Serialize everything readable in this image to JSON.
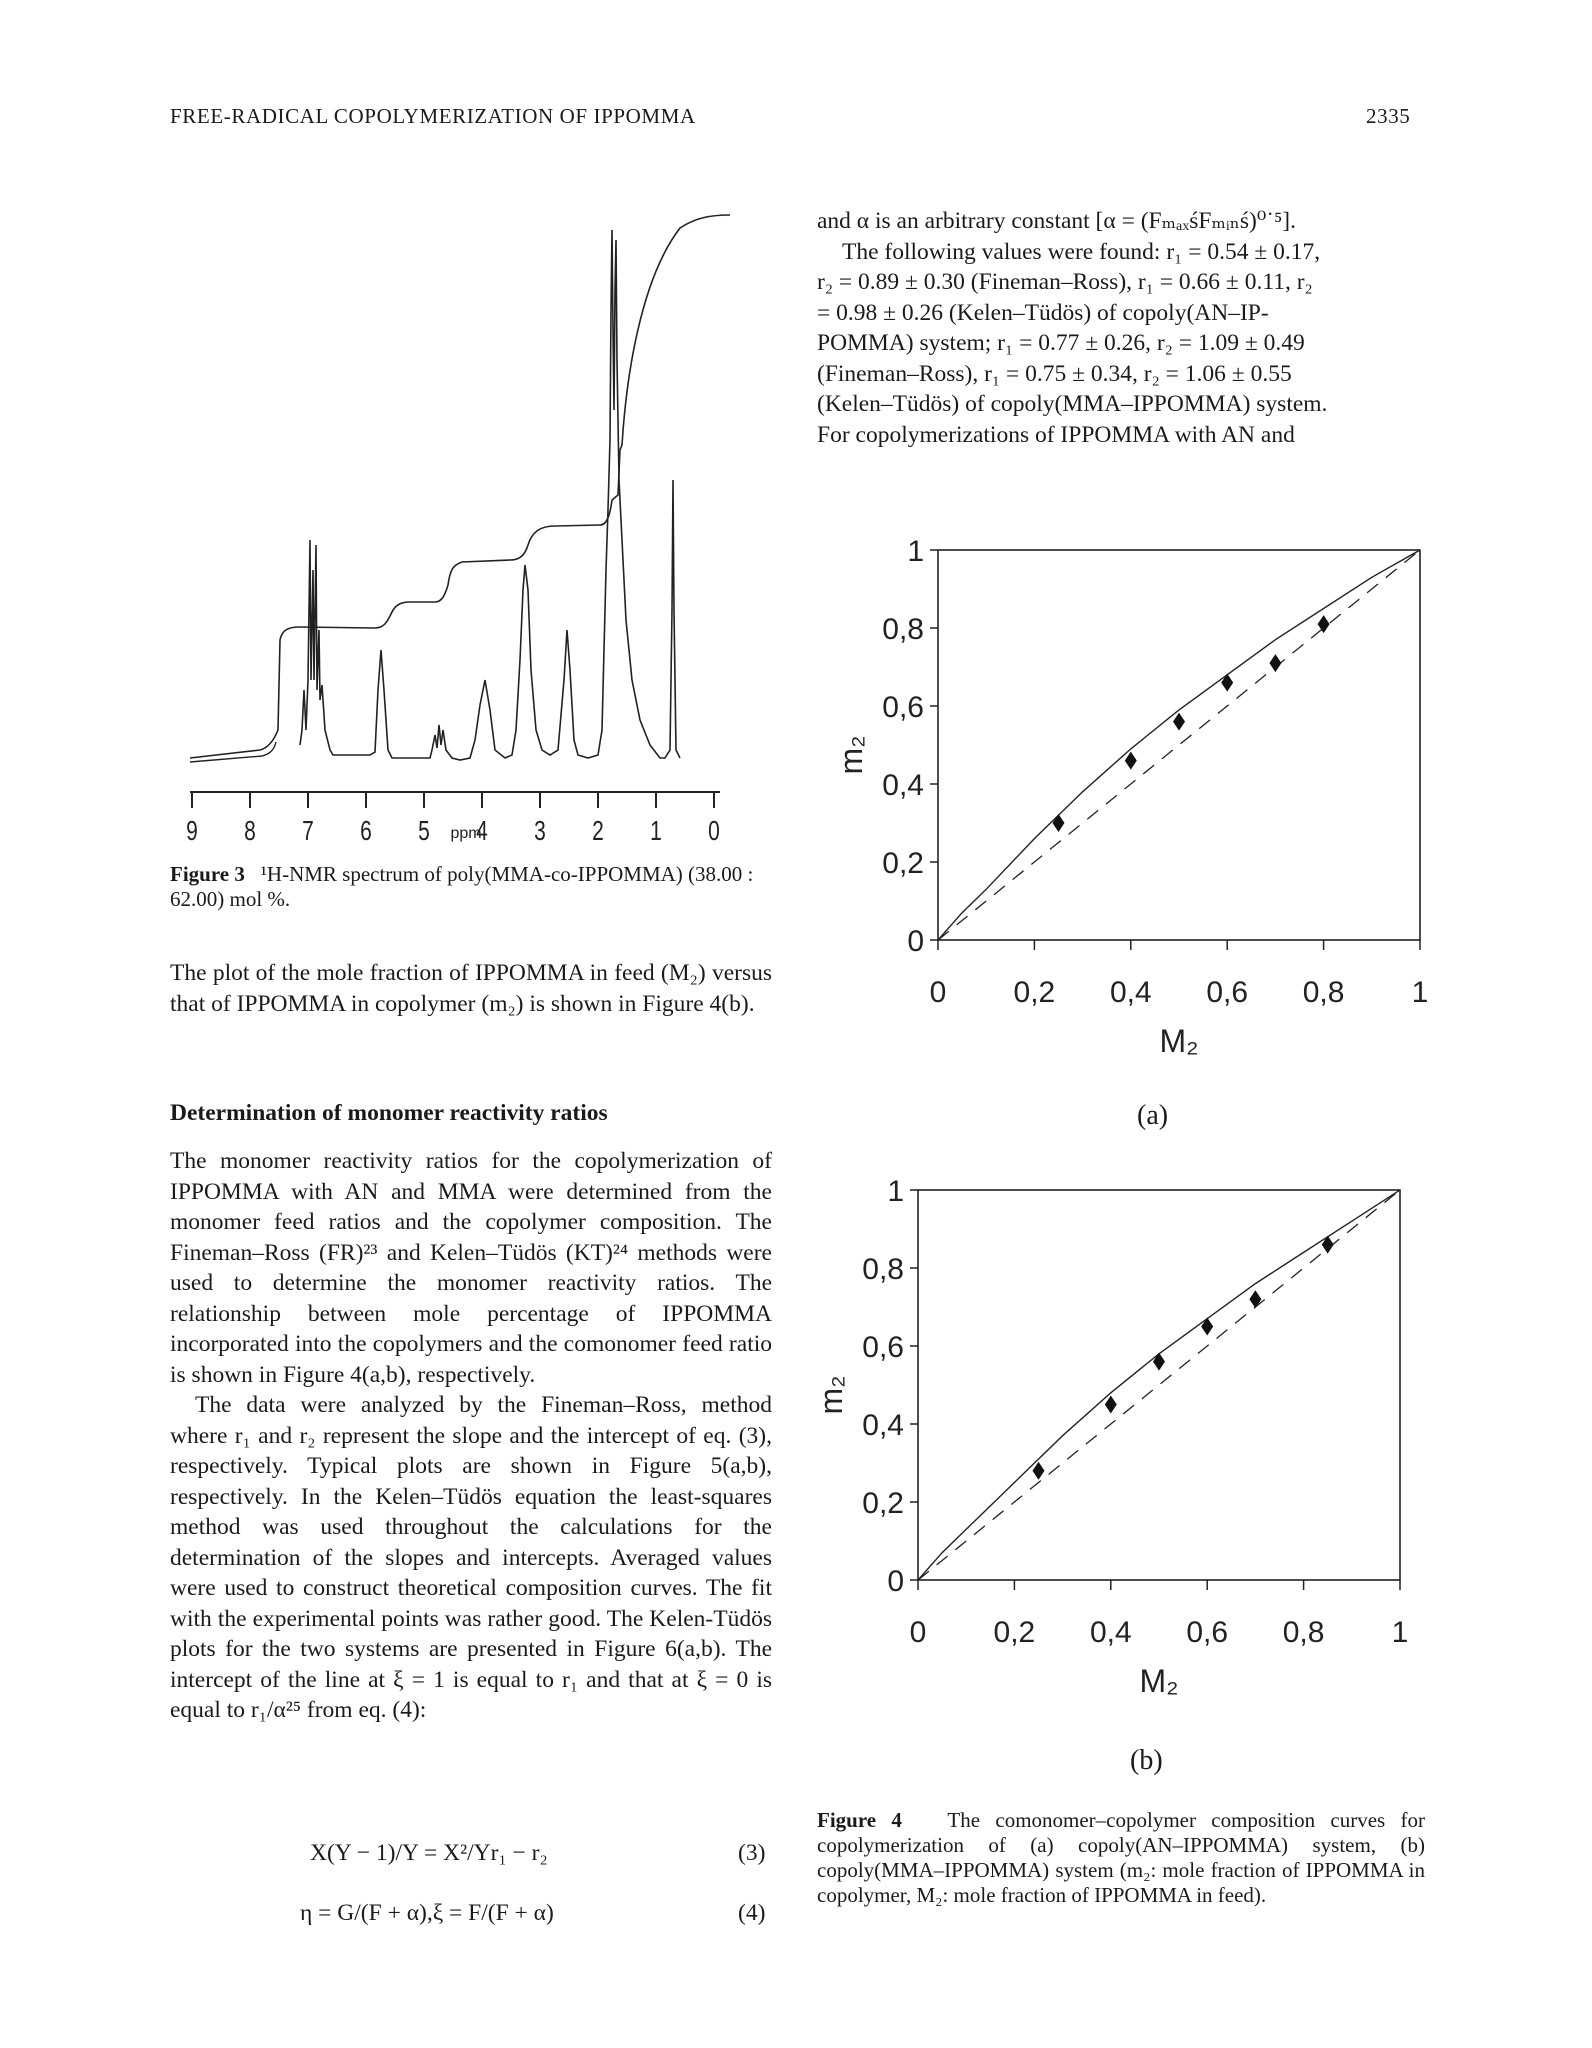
{
  "header": {
    "left": "FREE-RADICAL COPOLYMERIZATION OF IPPOMMA",
    "page_number": "2335"
  },
  "right_text": {
    "lines": [
      "and α is an arbitrary constant [α = (FₘₐₓśFₘᵢₙś)⁰˙⁵].",
      "The following values were found: r₁ = 0.54 ± 0.17,",
      "r₂ = 0.89 ± 0.30 (Fineman–Ross), r₁ = 0.66 ± 0.11, r₂",
      "= 0.98 ± 0.26 (Kelen–Tüdös) of copoly(AN–IP-",
      "POMMA) system; r₁ = 0.77 ± 0.26, r₂ = 1.09 ± 0.49",
      "(Fineman–Ross), r₁ = 0.75 ± 0.34, r₂ = 1.06 ± 0.55",
      "(Kelen–Tüdös) of copoly(MMA–IPPOMMA) system.",
      "For copolymerizations of IPPOMMA with AN and"
    ]
  },
  "figure3": {
    "axis_ticks": [
      "9",
      "8",
      "7",
      "6",
      "5",
      "4",
      "3",
      "2",
      "1",
      "0"
    ],
    "axis_unit": "ppm",
    "caption_label": "Figure 3",
    "caption_text": "¹H-NMR spectrum of poly(MMA-co-IPPOMMA) (38.00 : 62.00) mol %."
  },
  "left_text": {
    "para1": "The plot of the mole fraction of IPPOMMA in feed (M₂) versus that of IPPOMMA in copolymer (m₂) is shown in Figure 4(b).",
    "heading": "Determination of monomer reactivity ratios",
    "para2": "The monomer reactivity ratios for the copolymerization of IPPOMMA with AN and MMA were determined from the monomer feed ratios and the copolymer composition. The Fineman–Ross (FR)²³ and Kelen–Tüdös (KT)²⁴ methods were used to determine the monomer reactivity ratios. The relationship between mole percentage of IPPOMMA incorporated into the copolymers and the comonomer feed ratio is shown in Figure 4(a,b), respectively.",
    "para3": "The data were analyzed by the Fineman–Ross, method where r₁ and r₂ represent the slope and the intercept of eq. (3), respectively. Typical plots are shown in Figure 5(a,b), respectively. In the Kelen–Tüdös equation the least-squares method was used throughout the calculations for the determination of the slopes and intercepts. Averaged values were used to construct theoretical composition curves. The fit with the experimental points was rather good. The Kelen-Tüdös plots for the two systems are presented in Figure 6(a,b). The intercept of the line at ξ = 1 is equal to r₁ and that at ξ = 0 is equal to r₁/α²⁵ from eq. (4):",
    "eq3": "X(Y − 1)/Y = X²/Yr₁ − r₂",
    "eq3_num": "(3)",
    "eq4": "η = G/(F + α),ξ = F/(F + α)",
    "eq4_num": "(4)"
  },
  "chart_data": [
    {
      "type": "scatter",
      "panel": "(a)",
      "xlabel": "M₂",
      "ylabel": "m₂",
      "xlim": [
        0,
        1
      ],
      "ylim": [
        0,
        1
      ],
      "x_ticks": [
        "0",
        "0,2",
        "0,4",
        "0,6",
        "0,8",
        "1"
      ],
      "y_ticks": [
        "0",
        "0,2",
        "0,4",
        "0,6",
        "0,8",
        "1"
      ],
      "points": {
        "x": [
          0.25,
          0.4,
          0.5,
          0.6,
          0.7,
          0.8
        ],
        "y": [
          0.3,
          0.46,
          0.56,
          0.66,
          0.71,
          0.81
        ]
      },
      "solid_curve": {
        "x": [
          0,
          0.05,
          0.1,
          0.2,
          0.3,
          0.4,
          0.5,
          0.6,
          0.7,
          0.8,
          0.9,
          1.0
        ],
        "y": [
          0,
          0.07,
          0.13,
          0.26,
          0.38,
          0.49,
          0.59,
          0.68,
          0.77,
          0.85,
          0.93,
          1.0
        ]
      },
      "dashed_line": {
        "x": [
          0,
          1
        ],
        "y": [
          0,
          1
        ]
      }
    },
    {
      "type": "scatter",
      "panel": "(b)",
      "xlabel": "M₂",
      "ylabel": "m₂",
      "xlim": [
        0,
        1
      ],
      "ylim": [
        0,
        1
      ],
      "x_ticks": [
        "0",
        "0,2",
        "0,4",
        "0,6",
        "0,8",
        "1"
      ],
      "y_ticks": [
        "0",
        "0,2",
        "0,4",
        "0,6",
        "0,8",
        "1"
      ],
      "points": {
        "x": [
          0.25,
          0.4,
          0.5,
          0.6,
          0.7,
          0.85
        ],
        "y": [
          0.28,
          0.45,
          0.56,
          0.65,
          0.72,
          0.86
        ]
      },
      "solid_curve": {
        "x": [
          0,
          0.05,
          0.1,
          0.2,
          0.3,
          0.4,
          0.5,
          0.6,
          0.7,
          0.8,
          0.9,
          1.0
        ],
        "y": [
          0,
          0.07,
          0.13,
          0.25,
          0.37,
          0.48,
          0.58,
          0.67,
          0.76,
          0.84,
          0.92,
          1.0
        ]
      },
      "dashed_line": {
        "x": [
          0,
          1
        ],
        "y": [
          0,
          1
        ]
      }
    }
  ],
  "figure4": {
    "caption_label": "Figure 4",
    "caption_text": "The comonomer–copolymer composition curves for copolymerization of (a) copoly(AN–IPPOMMA) system, (b) copoly(MMA–IPPOMMA) system (m₂: mole fraction of IPPOMMA in copolymer, M₂: mole fraction of IPPOMMA in feed)."
  }
}
